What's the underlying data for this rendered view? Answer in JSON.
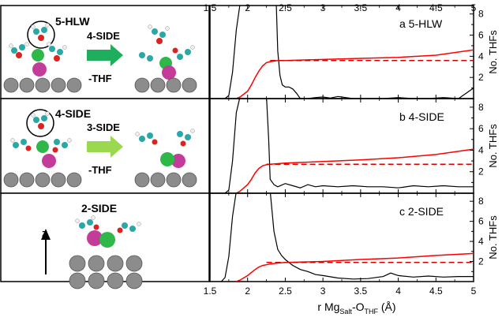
{
  "left_panels": [
    {
      "title": "5-HLW",
      "target": "4-SIDE",
      "reaction": "-THF",
      "arrow_color": "#1fae5e",
      "circled": true
    },
    {
      "title": "4-SIDE",
      "target": "3-SIDE",
      "reaction": "-THF",
      "arrow_color": "#9ad84f",
      "circled": true
    },
    {
      "title": "2-SIDE",
      "axis_label": "z",
      "circled": false
    }
  ],
  "x_ticks": [
    "1.5",
    "2",
    "2.5",
    "3",
    "3.5",
    "4",
    "4.5",
    "5"
  ],
  "x_label": {
    "prefix": "r Mg",
    "sub1": "Salt",
    "mid": "-O",
    "sub2": "THF",
    "suffix": " (Å)"
  },
  "y_label": "No. THFs",
  "colors": {
    "rdf": "#000000",
    "cn": "#ff0000",
    "cn_plateau": "#d40000",
    "metal": "#8c8c8c",
    "mg": "#2fb84a",
    "salt": "#c43c9a"
  },
  "chart_data": [
    {
      "type": "line",
      "label": "a 5-HLW",
      "x_range": [
        1.5,
        5
      ],
      "y_range": [
        0,
        8.8
      ],
      "y_ticks": [
        2,
        4,
        6,
        8
      ],
      "series": [
        {
          "role": "rdf",
          "color": "#000000",
          "x": [
            1.5,
            1.6,
            1.7,
            1.75,
            1.8,
            1.85,
            1.9,
            1.93,
            1.96,
            2.0,
            2.05,
            2.1,
            2.15,
            2.2,
            2.25,
            2.3,
            2.35,
            2.38,
            2.4,
            2.43,
            2.46,
            2.5,
            2.55,
            2.6,
            2.65,
            2.7,
            2.8,
            2.9,
            3.0,
            3.1,
            3.2,
            3.4,
            3.6,
            3.8,
            4.0,
            4.2,
            4.4,
            4.6,
            4.8,
            5.0
          ],
          "y": [
            0,
            0,
            0,
            0.3,
            2.5,
            6.5,
            9,
            9,
            9,
            9,
            9,
            9,
            9,
            9,
            9,
            9,
            9,
            9,
            4.5,
            2.2,
            1.3,
            1.1,
            1.1,
            0.9,
            0.5,
            0,
            0,
            0.1,
            0.15,
            0.05,
            0.2,
            0,
            0,
            0,
            0.1,
            0,
            0,
            0.1,
            0,
            1.0
          ]
        },
        {
          "role": "coordination number",
          "color": "#ff0000",
          "x": [
            1.85,
            1.9,
            2.0,
            2.05,
            2.1,
            2.15,
            2.2,
            2.25,
            2.3,
            2.4,
            2.5,
            3.0,
            3.5,
            4.0,
            4.5,
            5.0
          ],
          "y": [
            0,
            0.15,
            0.7,
            1.3,
            2.0,
            2.6,
            3.1,
            3.4,
            3.5,
            3.6,
            3.6,
            3.7,
            3.8,
            3.9,
            4.1,
            4.6
          ]
        },
        {
          "role": "plateau",
          "color": "#d40000",
          "dashed": true,
          "x": [
            2.3,
            5.0
          ],
          "y": [
            3.6,
            3.6
          ]
        }
      ]
    },
    {
      "type": "line",
      "label": "b 4-SIDE",
      "x_range": [
        1.5,
        5
      ],
      "y_range": [
        0,
        8.8
      ],
      "y_ticks": [
        2,
        4,
        6,
        8
      ],
      "series": [
        {
          "role": "rdf",
          "color": "#000000",
          "x": [
            1.5,
            1.7,
            1.75,
            1.8,
            1.85,
            1.9,
            2.0,
            2.1,
            2.2,
            2.25,
            2.28,
            2.3,
            2.35,
            2.4,
            2.5,
            2.6,
            2.7,
            2.8,
            2.9,
            3.0,
            3.2,
            3.4,
            3.6,
            3.8,
            4.0,
            4.2,
            4.4,
            4.6,
            4.8,
            5.0
          ],
          "y": [
            0,
            0,
            0.3,
            3,
            7.5,
            9,
            9,
            9,
            9,
            9,
            5,
            1.3,
            0.8,
            0.6,
            0.9,
            0.7,
            0.5,
            0.8,
            0.6,
            0.7,
            0.6,
            0.7,
            0.6,
            0.6,
            0.5,
            0.7,
            0.6,
            0.7,
            0.6,
            0.6
          ]
        },
        {
          "role": "coordination number",
          "color": "#ff0000",
          "x": [
            1.85,
            1.9,
            2.0,
            2.05,
            2.1,
            2.15,
            2.2,
            2.25,
            2.3,
            2.4,
            2.5,
            3.0,
            3.5,
            4.0,
            4.5,
            5.0
          ],
          "y": [
            0,
            0.2,
            0.8,
            1.3,
            1.9,
            2.3,
            2.55,
            2.65,
            2.7,
            2.75,
            2.8,
            2.95,
            3.1,
            3.3,
            3.6,
            4.1
          ]
        },
        {
          "role": "plateau",
          "color": "#d40000",
          "dashed": true,
          "x": [
            2.25,
            5.0
          ],
          "y": [
            2.7,
            2.7
          ]
        }
      ]
    },
    {
      "type": "line",
      "label": "c 2-SIDE",
      "x_range": [
        1.5,
        5
      ],
      "y_range": [
        0,
        8.8
      ],
      "y_ticks": [
        2,
        4,
        6,
        8
      ],
      "series": [
        {
          "role": "rdf",
          "color": "#000000",
          "x": [
            1.5,
            1.65,
            1.7,
            1.75,
            1.8,
            1.85,
            1.9,
            2.0,
            2.1,
            2.2,
            2.3,
            2.35,
            2.4,
            2.45,
            2.5,
            2.6,
            2.7,
            2.8,
            2.9,
            3.0,
            3.2,
            3.4,
            3.6,
            3.8,
            3.9,
            4.0,
            4.2,
            4.4,
            4.6,
            4.8,
            5.0
          ],
          "y": [
            0,
            0,
            0.4,
            2.5,
            6.5,
            9,
            9,
            9,
            9,
            9,
            9,
            5,
            3.2,
            2.6,
            2.2,
            1.6,
            1.2,
            1.0,
            0.7,
            0.6,
            0.35,
            0.25,
            0.3,
            0.5,
            0.85,
            0.6,
            0.45,
            0.55,
            0.45,
            0.5,
            0.5
          ]
        },
        {
          "role": "coordination number",
          "color": "#ff0000",
          "x": [
            1.85,
            1.9,
            2.0,
            2.05,
            2.1,
            2.15,
            2.2,
            2.3,
            2.4,
            2.5,
            3.0,
            3.5,
            4.0,
            4.5,
            5.0
          ],
          "y": [
            0,
            0.15,
            0.6,
            0.9,
            1.2,
            1.45,
            1.6,
            1.75,
            1.85,
            1.9,
            2.0,
            2.2,
            2.35,
            2.6,
            2.8
          ]
        },
        {
          "role": "plateau",
          "color": "#d40000",
          "dashed": true,
          "x": [
            2.25,
            5.0
          ],
          "y": [
            1.9,
            1.9
          ]
        }
      ]
    }
  ]
}
